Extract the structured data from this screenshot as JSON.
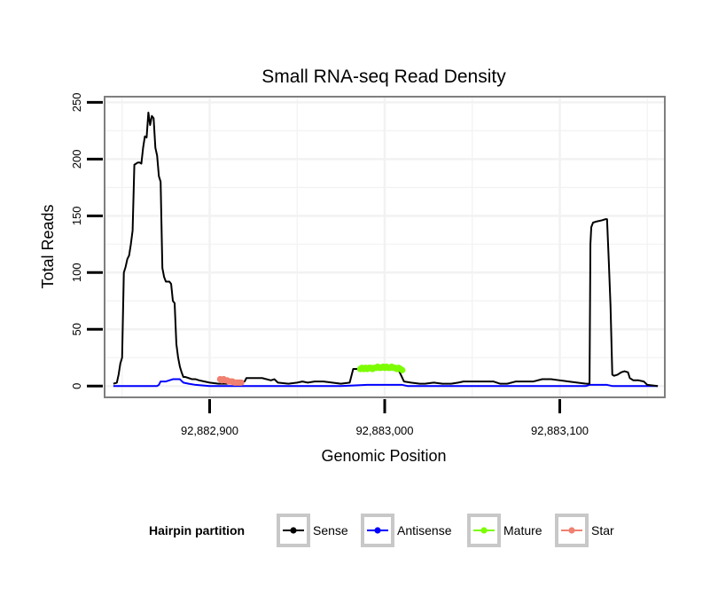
{
  "chart_data": {
    "type": "line",
    "title": "Small RNA-seq Read Density",
    "xlabel": "Genomic Position",
    "ylabel": "Total Reads",
    "xlim": [
      92882840,
      92883160
    ],
    "ylim": [
      -10,
      255
    ],
    "x_ticks": [
      {
        "value": 92882900,
        "label": "92,882,900"
      },
      {
        "value": 92883000,
        "label": "92,883,000"
      },
      {
        "value": 92883100,
        "label": "92,883,100"
      }
    ],
    "y_ticks": [
      {
        "value": 0,
        "label": "0"
      },
      {
        "value": 50,
        "label": "50"
      },
      {
        "value": 100,
        "label": "100"
      },
      {
        "value": 150,
        "label": "150"
      },
      {
        "value": 200,
        "label": "200"
      },
      {
        "value": 250,
        "label": "250"
      }
    ],
    "grid": true,
    "legend": {
      "title": "Hairpin partition",
      "position": "bottom",
      "entries": [
        {
          "name": "Sense",
          "color": "#000000"
        },
        {
          "name": "Antisense",
          "color": "#0000ff"
        },
        {
          "name": "Mature",
          "color": "#7cfc00"
        },
        {
          "name": "Star",
          "color": "#f08070"
        }
      ]
    },
    "series": [
      {
        "name": "Sense",
        "color": "#000000",
        "style": "line",
        "points": [
          [
            92882845,
            2
          ],
          [
            92882847,
            3
          ],
          [
            92882848,
            10
          ],
          [
            92882849,
            20
          ],
          [
            92882850,
            25
          ],
          [
            92882851,
            100
          ],
          [
            92882852,
            105
          ],
          [
            92882853,
            112
          ],
          [
            92882854,
            115
          ],
          [
            92882855,
            125
          ],
          [
            92882856,
            137
          ],
          [
            92882857,
            195
          ],
          [
            92882858,
            196
          ],
          [
            92882859,
            197
          ],
          [
            92882860,
            197
          ],
          [
            92882861,
            196
          ],
          [
            92882862,
            210
          ],
          [
            92882863,
            220
          ],
          [
            92882864,
            219
          ],
          [
            92882865,
            241
          ],
          [
            92882866,
            230
          ],
          [
            92882867,
            238
          ],
          [
            92882868,
            236
          ],
          [
            92882869,
            210
          ],
          [
            92882870,
            203
          ],
          [
            92882871,
            185
          ],
          [
            92882872,
            180
          ],
          [
            92882873,
            104
          ],
          [
            92882874,
            96
          ],
          [
            92882875,
            92
          ],
          [
            92882877,
            92
          ],
          [
            92882878,
            90
          ],
          [
            92882879,
            75
          ],
          [
            92882880,
            73
          ],
          [
            92882881,
            37
          ],
          [
            92882882,
            25
          ],
          [
            92882883,
            17
          ],
          [
            92882884,
            12
          ],
          [
            92882885,
            8
          ],
          [
            92882886,
            8
          ],
          [
            92882888,
            7
          ],
          [
            92882890,
            6
          ],
          [
            92882892,
            6
          ],
          [
            92882894,
            5
          ],
          [
            92882897,
            4
          ],
          [
            92882900,
            3
          ],
          [
            92882905,
            2
          ],
          [
            92882910,
            2
          ],
          [
            92882914,
            3
          ],
          [
            92882918,
            3
          ],
          [
            92882920,
            4
          ],
          [
            92882921,
            7
          ],
          [
            92882925,
            7
          ],
          [
            92882930,
            7
          ],
          [
            92882935,
            5
          ],
          [
            92882937,
            6
          ],
          [
            92882939,
            3
          ],
          [
            92882945,
            2
          ],
          [
            92882950,
            3
          ],
          [
            92882953,
            4
          ],
          [
            92882956,
            3
          ],
          [
            92882960,
            4
          ],
          [
            92882965,
            4
          ],
          [
            92882970,
            3
          ],
          [
            92882975,
            2
          ],
          [
            92882980,
            3
          ],
          [
            92882982,
            15
          ],
          [
            92882985,
            15
          ],
          [
            92882995,
            15
          ],
          [
            92883002,
            15
          ],
          [
            92883008,
            14
          ],
          [
            92883011,
            4
          ],
          [
            92883015,
            3
          ],
          [
            92883020,
            2
          ],
          [
            92883023,
            2
          ],
          [
            92883028,
            3
          ],
          [
            92883033,
            2
          ],
          [
            92883038,
            2
          ],
          [
            92883042,
            3
          ],
          [
            92883045,
            4
          ],
          [
            92883050,
            4
          ],
          [
            92883062,
            4
          ],
          [
            92883066,
            2
          ],
          [
            92883070,
            2
          ],
          [
            92883075,
            4
          ],
          [
            92883080,
            4
          ],
          [
            92883085,
            4
          ],
          [
            92883090,
            6
          ],
          [
            92883095,
            6
          ],
          [
            92883100,
            5
          ],
          [
            92883105,
            4
          ],
          [
            92883110,
            3
          ],
          [
            92883115,
            2
          ],
          [
            92883117,
            2
          ],
          [
            92883117.5,
            125
          ],
          [
            92883118,
            140
          ],
          [
            92883119,
            144
          ],
          [
            92883121,
            145
          ],
          [
            92883124,
            146
          ],
          [
            92883126,
            147
          ],
          [
            92883127,
            147
          ],
          [
            92883128,
            110
          ],
          [
            92883129,
            70
          ],
          [
            92883130,
            10
          ],
          [
            92883131,
            9
          ],
          [
            92883133,
            10
          ],
          [
            92883135,
            12
          ],
          [
            92883137,
            13
          ],
          [
            92883139,
            12
          ],
          [
            92883140,
            7
          ],
          [
            92883142,
            5
          ],
          [
            92883145,
            5
          ],
          [
            92883148,
            4
          ],
          [
            92883150,
            1
          ],
          [
            92883156,
            0
          ]
        ]
      },
      {
        "name": "Antisense",
        "color": "#0000ff",
        "style": "line",
        "points": [
          [
            92882845,
            0
          ],
          [
            92882870,
            0
          ],
          [
            92882871,
            1
          ],
          [
            92882872,
            4
          ],
          [
            92882875,
            4
          ],
          [
            92882877,
            5
          ],
          [
            92882879,
            6
          ],
          [
            92882883,
            6
          ],
          [
            92882885,
            3
          ],
          [
            92882888,
            2
          ],
          [
            92882892,
            1
          ],
          [
            92882900,
            0
          ],
          [
            92882915,
            0
          ],
          [
            92882925,
            0
          ],
          [
            92882945,
            0
          ],
          [
            92882960,
            0
          ],
          [
            92882975,
            0
          ],
          [
            92882990,
            1
          ],
          [
            92883010,
            1
          ],
          [
            92883013,
            0
          ],
          [
            92883030,
            0
          ],
          [
            92883080,
            0
          ],
          [
            92883115,
            0
          ],
          [
            92883117,
            1
          ],
          [
            92883127,
            1
          ],
          [
            92883130,
            0
          ],
          [
            92883156,
            0
          ]
        ]
      },
      {
        "name": "Mature",
        "color": "#7cfc00",
        "style": "points",
        "points": [
          [
            92882986,
            15
          ],
          [
            92882987,
            16
          ],
          [
            92882988,
            15
          ],
          [
            92882989,
            16
          ],
          [
            92882990,
            15
          ],
          [
            92882991,
            16
          ],
          [
            92882992,
            16
          ],
          [
            92882993,
            15
          ],
          [
            92882994,
            16
          ],
          [
            92882995,
            16
          ],
          [
            92882996,
            17
          ],
          [
            92882997,
            16
          ],
          [
            92882998,
            16
          ],
          [
            92882999,
            17
          ],
          [
            92883000,
            16
          ],
          [
            92883001,
            17
          ],
          [
            92883002,
            16
          ],
          [
            92883003,
            16
          ],
          [
            92883004,
            17
          ],
          [
            92883005,
            16
          ],
          [
            92883006,
            16
          ],
          [
            92883007,
            15
          ],
          [
            92883008,
            16
          ],
          [
            92883009,
            15
          ],
          [
            92883010,
            14
          ]
        ]
      },
      {
        "name": "Star",
        "color": "#f08070",
        "style": "points",
        "points": [
          [
            92882906,
            6
          ],
          [
            92882907,
            5
          ],
          [
            92882908,
            6
          ],
          [
            92882909,
            5
          ],
          [
            92882910,
            5
          ],
          [
            92882911,
            4
          ],
          [
            92882912,
            4
          ],
          [
            92882913,
            4
          ],
          [
            92882914,
            3
          ],
          [
            92882915,
            3
          ],
          [
            92882916,
            3
          ],
          [
            92882917,
            3
          ],
          [
            92882918,
            3
          ]
        ]
      }
    ]
  }
}
